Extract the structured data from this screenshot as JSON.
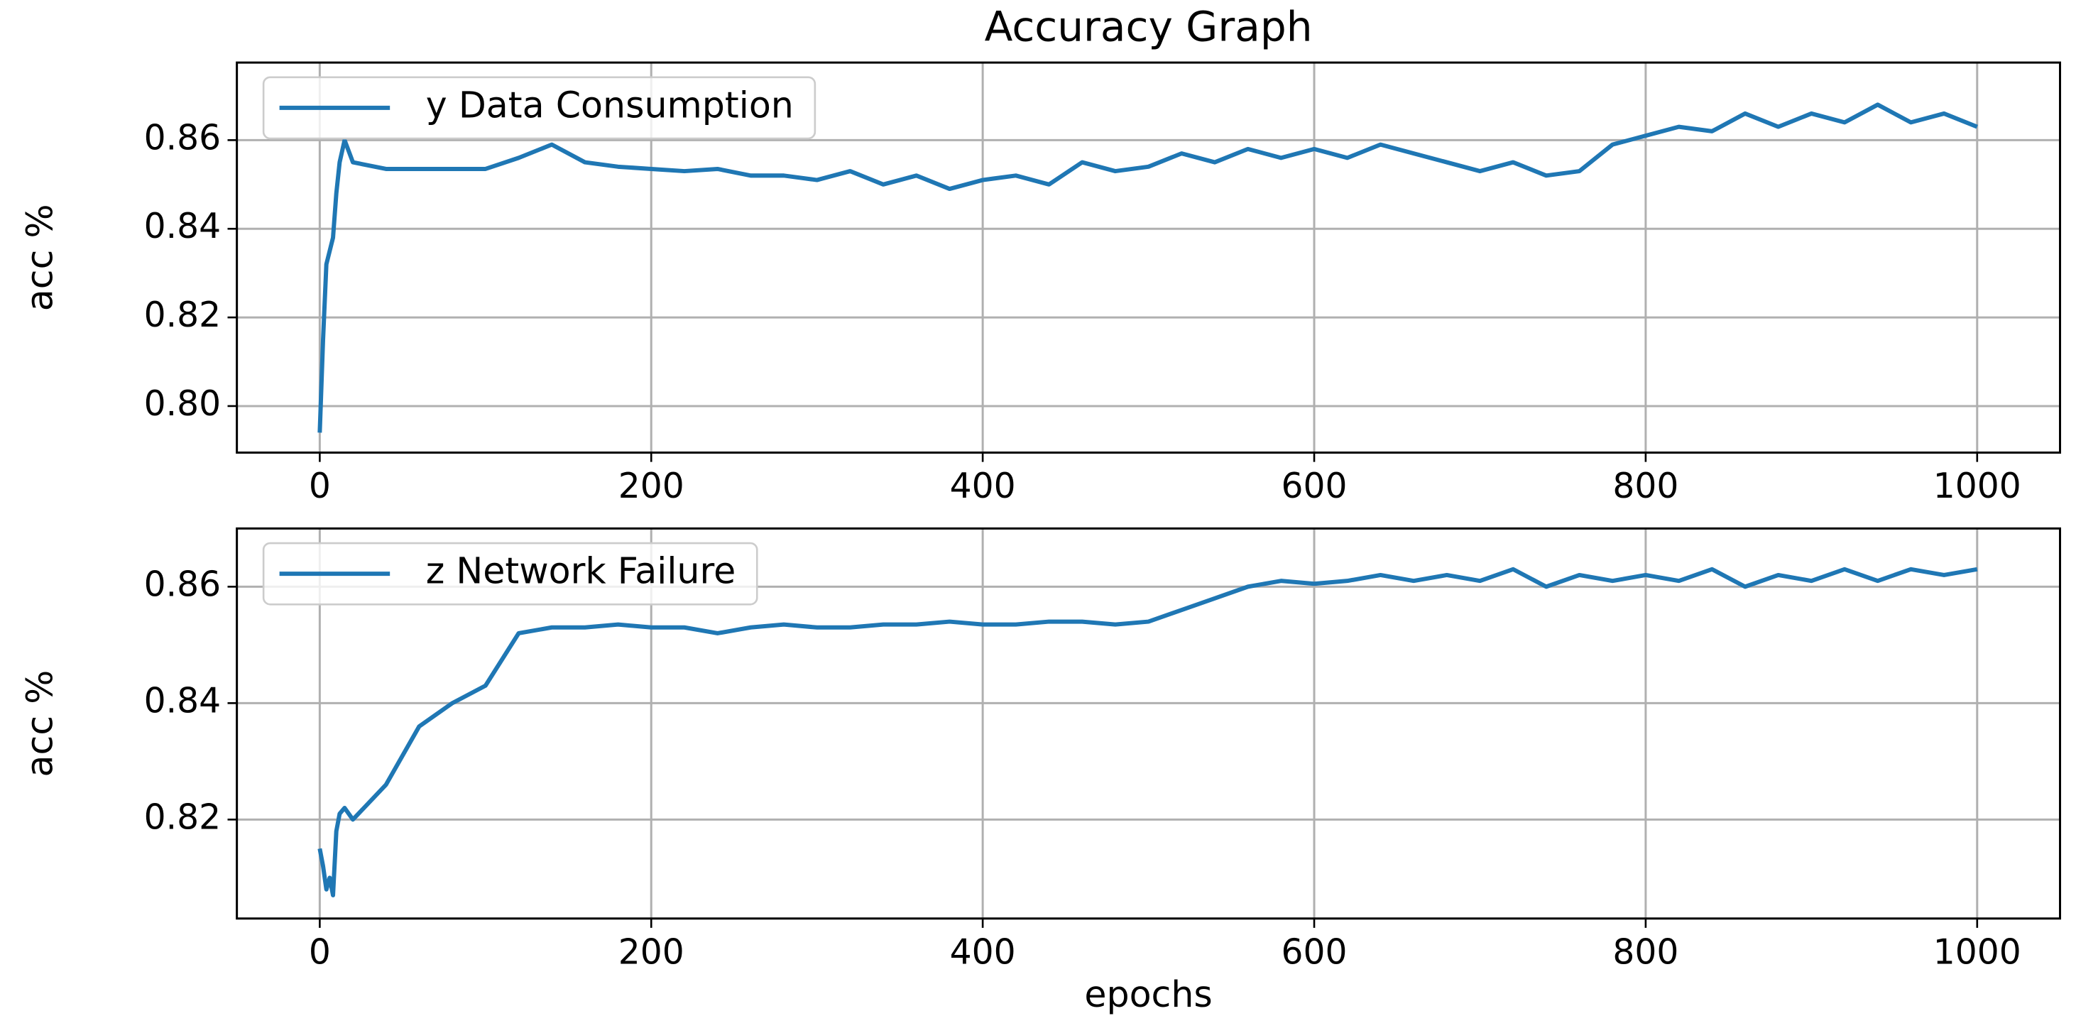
{
  "chart_data": [
    {
      "type": "line",
      "title": "Accuracy Graph",
      "ylabel": "acc %",
      "x": [
        0,
        2,
        4,
        6,
        8,
        10,
        12,
        15,
        20,
        40,
        60,
        80,
        100,
        120,
        140,
        160,
        180,
        200,
        220,
        240,
        260,
        280,
        300,
        320,
        340,
        360,
        380,
        400,
        420,
        440,
        460,
        480,
        500,
        520,
        540,
        560,
        580,
        600,
        620,
        640,
        660,
        680,
        700,
        720,
        740,
        760,
        780,
        800,
        820,
        840,
        860,
        880,
        900,
        920,
        940,
        960,
        980,
        1000
      ],
      "series": [
        {
          "name": "y Data Consumption",
          "color": "#1f77b4",
          "values": [
            0.794,
            0.815,
            0.832,
            0.835,
            0.838,
            0.848,
            0.855,
            0.86,
            0.855,
            0.8535,
            0.8535,
            0.8535,
            0.8535,
            0.856,
            0.859,
            0.855,
            0.854,
            0.8535,
            0.853,
            0.8535,
            0.852,
            0.852,
            0.851,
            0.853,
            0.85,
            0.852,
            0.849,
            0.851,
            0.852,
            0.85,
            0.855,
            0.853,
            0.854,
            0.857,
            0.855,
            0.858,
            0.856,
            0.858,
            0.856,
            0.859,
            0.857,
            0.855,
            0.853,
            0.855,
            0.852,
            0.853,
            0.859,
            0.861,
            0.863,
            0.862,
            0.866,
            0.863,
            0.866,
            0.864,
            0.868,
            0.864,
            0.866,
            0.863
          ]
        }
      ],
      "xlim": [
        -50,
        1050
      ],
      "xticks": [
        0,
        200,
        400,
        600,
        800,
        1000
      ],
      "ylim": [
        0.7895,
        0.8775
      ],
      "yticks": [
        {
          "value": 0.8,
          "label": "0.80"
        },
        0.82,
        0.84,
        0.86
      ],
      "grid": true,
      "legend": "upper left"
    },
    {
      "type": "line",
      "ylabel": "acc %",
      "xlabel": "epochs",
      "x": [
        0,
        2,
        4,
        6,
        8,
        10,
        12,
        15,
        20,
        40,
        60,
        80,
        100,
        120,
        140,
        160,
        180,
        200,
        220,
        240,
        260,
        280,
        300,
        320,
        340,
        360,
        380,
        400,
        420,
        440,
        460,
        480,
        500,
        520,
        540,
        560,
        580,
        600,
        620,
        640,
        660,
        680,
        700,
        720,
        740,
        760,
        780,
        800,
        820,
        840,
        860,
        880,
        900,
        920,
        940,
        960,
        980,
        1000
      ],
      "series": [
        {
          "name": "z Network Failure",
          "color": "#1f77b4",
          "values": [
            0.815,
            0.812,
            0.808,
            0.81,
            0.807,
            0.818,
            0.821,
            0.822,
            0.82,
            0.826,
            0.836,
            0.84,
            0.843,
            0.852,
            0.853,
            0.853,
            0.8535,
            0.853,
            0.853,
            0.852,
            0.853,
            0.8535,
            0.853,
            0.853,
            0.8535,
            0.8535,
            0.854,
            0.8535,
            0.8535,
            0.854,
            0.854,
            0.8535,
            0.854,
            0.856,
            0.858,
            0.86,
            0.861,
            0.8605,
            0.861,
            0.862,
            0.861,
            0.862,
            0.861,
            0.863,
            0.86,
            0.862,
            0.861,
            0.862,
            0.861,
            0.863,
            0.86,
            0.862,
            0.861,
            0.863,
            0.861,
            0.863,
            0.862,
            0.863
          ]
        }
      ],
      "xlim": [
        -50,
        1050
      ],
      "xticks": [
        0,
        200,
        400,
        600,
        800,
        1000
      ],
      "ylim": [
        0.803,
        0.87
      ],
      "yticks": [
        0.82,
        0.84,
        0.86
      ],
      "grid": true,
      "legend": "upper left"
    }
  ]
}
